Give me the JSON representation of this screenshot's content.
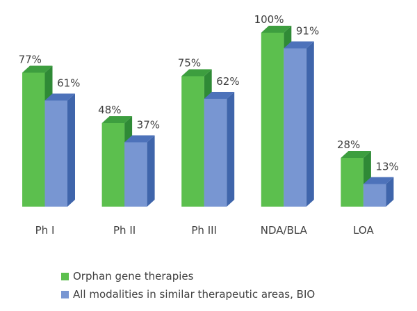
{
  "chart_data": {
    "type": "bar",
    "style": "3d-clustered-column",
    "categories": [
      "Ph I",
      "Ph II",
      "Ph III",
      "NDA/BLA",
      "LOA"
    ],
    "series": [
      {
        "name": "Orphan gene therapies",
        "values": [
          77,
          48,
          75,
          100,
          28
        ],
        "labels": [
          "77%",
          "48%",
          "75%",
          "100%",
          "28%"
        ],
        "color": "#5cbf4e"
      },
      {
        "name": "All modalities in similar therapeutic areas, BIO",
        "values": [
          61,
          37,
          62,
          91,
          13
        ],
        "labels": [
          "61%",
          "37%",
          "62%",
          "91%",
          "13%"
        ],
        "color": "#7896d2"
      }
    ],
    "ylim": [
      0,
      100
    ],
    "grid": false,
    "legend": "bottom"
  }
}
